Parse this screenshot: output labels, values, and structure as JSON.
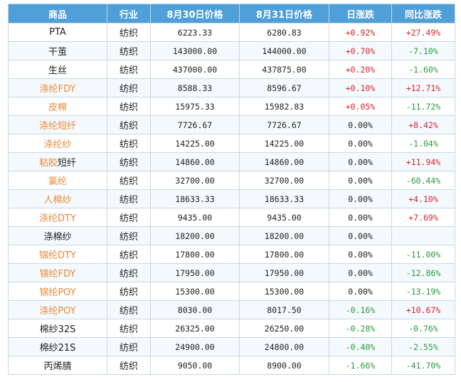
{
  "headers": [
    "商品",
    "行业",
    "8月30日价格",
    "8月31日价格",
    "日涨跌",
    "同比涨跌"
  ],
  "rows": [
    {
      "name": "PTA",
      "link": false,
      "industry": "纺织",
      "p30": "6223.33",
      "p31": "6280.83",
      "day": "+0.92%",
      "dayDir": "up",
      "yoy": "+27.49%",
      "yoyDir": "up"
    },
    {
      "name": "干茧",
      "link": false,
      "industry": "纺织",
      "p30": "143000.00",
      "p31": "144000.00",
      "day": "+0.70%",
      "dayDir": "up",
      "yoy": "-7.10%",
      "yoyDir": "down"
    },
    {
      "name": "生丝",
      "link": false,
      "industry": "纺织",
      "p30": "437000.00",
      "p31": "437875.00",
      "day": "+0.20%",
      "dayDir": "up",
      "yoy": "-1.60%",
      "yoyDir": "down"
    },
    {
      "name": "涤纶FDY",
      "link": true,
      "industry": "纺织",
      "p30": "8588.33",
      "p31": "8596.67",
      "day": "+0.10%",
      "dayDir": "up",
      "yoy": "+12.71%",
      "yoyDir": "up"
    },
    {
      "name": "皮棉",
      "link": true,
      "industry": "纺织",
      "p30": "15975.33",
      "p31": "15982.83",
      "day": "+0.05%",
      "dayDir": "up",
      "yoy": "-11.72%",
      "yoyDir": "down"
    },
    {
      "name": "涤纶短纤",
      "link": true,
      "industry": "纺织",
      "p30": "7726.67",
      "p31": "7726.67",
      "day": "0.00%",
      "dayDir": "flat",
      "yoy": "+8.42%",
      "yoyDir": "up"
    },
    {
      "name": "涤纶纱",
      "link": true,
      "industry": "纺织",
      "p30": "14225.00",
      "p31": "14225.00",
      "day": "0.00%",
      "dayDir": "flat",
      "yoy": "-1.04%",
      "yoyDir": "down"
    },
    {
      "name": "粘胶短纤",
      "link": "partial",
      "industry": "纺织",
      "p30": "14860.00",
      "p31": "14860.00",
      "day": "0.00%",
      "dayDir": "flat",
      "yoy": "+11.94%",
      "yoyDir": "up"
    },
    {
      "name": "氯纶",
      "link": true,
      "industry": "纺织",
      "p30": "32700.00",
      "p31": "32700.00",
      "day": "0.00%",
      "dayDir": "flat",
      "yoy": "-60.44%",
      "yoyDir": "down"
    },
    {
      "name": "人棉纱",
      "link": true,
      "industry": "纺织",
      "p30": "18633.33",
      "p31": "18633.33",
      "day": "0.00%",
      "dayDir": "flat",
      "yoy": "+4.10%",
      "yoyDir": "up"
    },
    {
      "name": "涤纶DTY",
      "link": true,
      "industry": "纺织",
      "p30": "9435.00",
      "p31": "9435.00",
      "day": "0.00%",
      "dayDir": "flat",
      "yoy": "+7.69%",
      "yoyDir": "up"
    },
    {
      "name": "涤棉纱",
      "link": false,
      "industry": "纺织",
      "p30": "18200.00",
      "p31": "18200.00",
      "day": "0.00%",
      "dayDir": "flat",
      "yoy": "",
      "yoyDir": "flat"
    },
    {
      "name": "锦纶DTY",
      "link": true,
      "industry": "纺织",
      "p30": "17800.00",
      "p31": "17800.00",
      "day": "0.00%",
      "dayDir": "flat",
      "yoy": "-11.00%",
      "yoyDir": "down"
    },
    {
      "name": "锦纶FDY",
      "link": true,
      "industry": "纺织",
      "p30": "17950.00",
      "p31": "17950.00",
      "day": "0.00%",
      "dayDir": "flat",
      "yoy": "-12.86%",
      "yoyDir": "down"
    },
    {
      "name": "锦纶POY",
      "link": true,
      "industry": "纺织",
      "p30": "15300.00",
      "p31": "15300.00",
      "day": "0.00%",
      "dayDir": "flat",
      "yoy": "-13.19%",
      "yoyDir": "down"
    },
    {
      "name": "涤纶POY",
      "link": true,
      "industry": "纺织",
      "p30": "8030.00",
      "p31": "8017.50",
      "day": "-0.16%",
      "dayDir": "down",
      "yoy": "+10.67%",
      "yoyDir": "up"
    },
    {
      "name": "棉纱32S",
      "link": false,
      "industry": "纺织",
      "p30": "26325.00",
      "p31": "26250.00",
      "day": "-0.28%",
      "dayDir": "down",
      "yoy": "-0.76%",
      "yoyDir": "down"
    },
    {
      "name": "棉纱21S",
      "link": false,
      "industry": "纺织",
      "p30": "24900.00",
      "p31": "24800.00",
      "day": "-0.40%",
      "dayDir": "down",
      "yoy": "-2.55%",
      "yoyDir": "down"
    },
    {
      "name": "丙烯腈",
      "link": false,
      "industry": "纺织",
      "p30": "9050.00",
      "p31": "8900.00",
      "day": "-1.66%",
      "dayDir": "down",
      "yoy": "-41.70%",
      "yoyDir": "down"
    }
  ],
  "colors": {
    "header_bg": "#4f9fd8",
    "link": "#e8893b",
    "up": "#d6242b",
    "down": "#2b9a3b",
    "border": "#c6d7e7"
  }
}
